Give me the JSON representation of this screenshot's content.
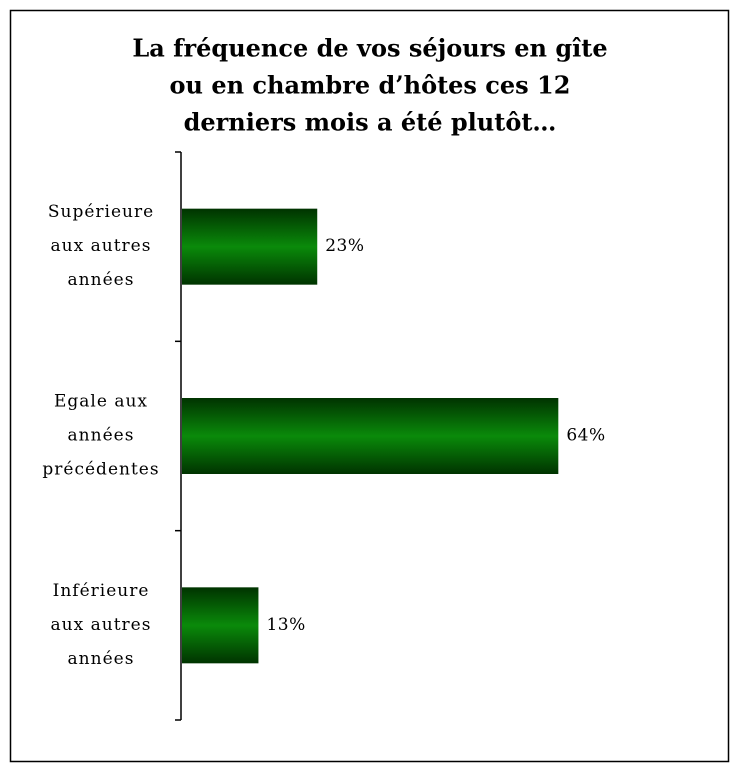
{
  "chart_data": {
    "type": "barh",
    "title": [
      "La fréquence de vos séjours en gîte",
      "ou en chambre d’hôtes ces 12",
      "derniers mois a été plutôt…"
    ],
    "categories": [
      [
        "Supérieure",
        "aux autres",
        "années"
      ],
      [
        "Egale aux",
        "années",
        "précédentes"
      ],
      [
        "Inférieure",
        "aux autres",
        "années"
      ]
    ],
    "values": [
      23,
      64,
      13
    ],
    "value_labels": [
      "23%",
      "64%",
      "13%"
    ],
    "color": "#0a8a0a"
  }
}
